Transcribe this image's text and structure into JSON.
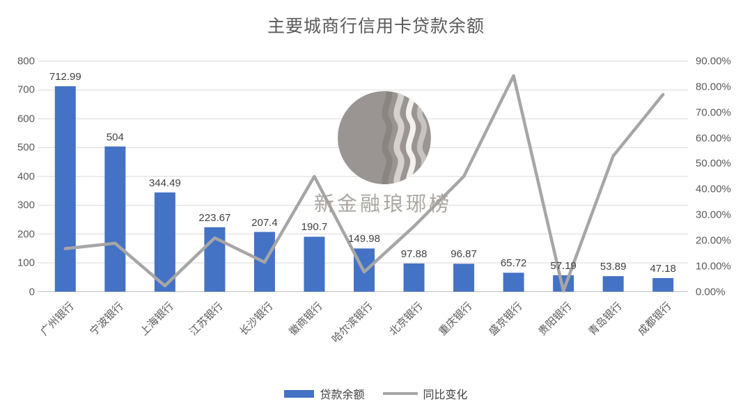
{
  "title": "主要城商行信用卡贷款余额",
  "watermark": {
    "text": "新金融琅琊榜"
  },
  "legend": {
    "items": [
      {
        "label": "贷款余额",
        "swatch": "bar",
        "color": "#4472C4"
      },
      {
        "label": "同比变化",
        "swatch": "line",
        "color": "#A6A6A6"
      }
    ]
  },
  "colors": {
    "bar": "#4472C4",
    "line": "#A6A6A6",
    "grid": "#D9D9D9",
    "axis_line": "#BFBFBF",
    "axis_text": "#595959",
    "data_label_text": "#404040",
    "watermark_circle": "#9A9492"
  },
  "chart_data": {
    "type": "bar",
    "subtype": "combo-bar-line-dual-axis",
    "title": "主要城商行信用卡贷款余额",
    "categories": [
      "广州银行",
      "宁波银行",
      "上海银行",
      "江苏银行",
      "长沙银行",
      "徽商银行",
      "哈尔滨银行",
      "北京银行",
      "重庆银行",
      "盛京银行",
      "贵阳银行",
      "青岛银行",
      "成都银行"
    ],
    "series": [
      {
        "name": "贷款余额",
        "type": "bar",
        "axis": "left",
        "color": "#4472C4",
        "values": [
          712.99,
          504,
          344.49,
          223.67,
          207.4,
          190.7,
          149.98,
          97.88,
          96.87,
          65.72,
          57.19,
          53.89,
          47.18
        ],
        "data_labels": [
          "712.99",
          "504",
          "344.49",
          "223.67",
          "207.4",
          "190.7",
          "149.98",
          "97.88",
          "96.87",
          "65.72",
          "57.19",
          "53.89",
          "47.18"
        ]
      },
      {
        "name": "同比变化",
        "type": "line",
        "axis": "right",
        "color": "#A6A6A6",
        "values_percent": [
          16.8,
          18.9,
          2.3,
          21.0,
          11.5,
          45.0,
          7.7,
          25.5,
          45.0,
          84.3,
          0.3,
          53.0,
          77.0
        ]
      }
    ],
    "left_axis": {
      "min": 0,
      "max": 800,
      "step": 100,
      "tick_values": [
        0,
        100,
        200,
        300,
        400,
        500,
        600,
        700,
        800
      ],
      "tick_labels": [
        "0",
        "100",
        "200",
        "300",
        "400",
        "500",
        "600",
        "700",
        "800"
      ]
    },
    "right_axis": {
      "min": 0,
      "max": 90,
      "step": 10,
      "tick_values": [
        0,
        10,
        20,
        30,
        40,
        50,
        60,
        70,
        80,
        90
      ],
      "tick_labels": [
        "0.00%",
        "10.00%",
        "20.00%",
        "30.00%",
        "40.00%",
        "50.00%",
        "60.00%",
        "70.00%",
        "80.00%",
        "90.00%"
      ]
    },
    "grid": true,
    "legend_position": "bottom",
    "xlabel": "",
    "ylabel": ""
  }
}
